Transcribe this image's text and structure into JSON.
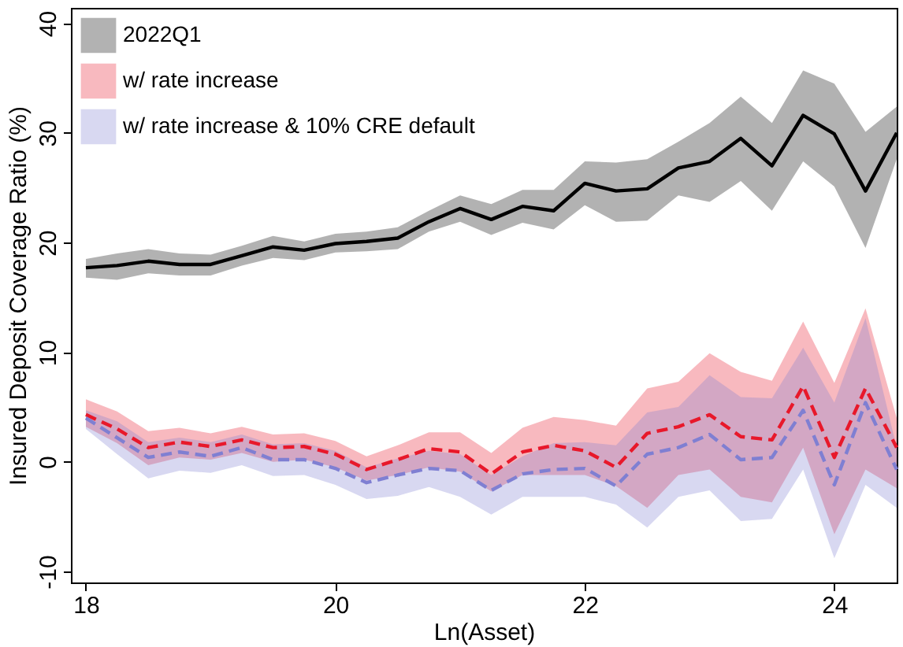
{
  "chart_data": {
    "type": "line",
    "xlabel": "Ln(Asset)",
    "ylabel": "Insured Deposit Coverage Ratio (%)",
    "x": [
      18,
      18.25,
      18.5,
      18.75,
      19,
      19.25,
      19.5,
      19.75,
      20,
      20.25,
      20.5,
      20.75,
      21,
      21.25,
      21.5,
      21.75,
      22,
      22.25,
      22.5,
      22.75,
      23,
      23.25,
      23.5,
      23.75,
      24,
      24.25,
      24.5
    ],
    "series": [
      {
        "name": "2022Q1",
        "color": "#000000",
        "line_style": "solid",
        "values": [
          17.7,
          17.9,
          18.3,
          18.0,
          18.0,
          18.8,
          19.6,
          19.3,
          19.9,
          20.1,
          20.4,
          21.9,
          23.1,
          22.1,
          23.3,
          22.9,
          25.4,
          24.7,
          24.9,
          26.8,
          27.4,
          29.5,
          27.0,
          31.6,
          29.9,
          24.7,
          30.0
        ],
        "lower": [
          16.8,
          16.6,
          17.2,
          17.0,
          17.0,
          17.9,
          18.6,
          18.4,
          19.1,
          19.2,
          19.4,
          21.0,
          21.9,
          20.7,
          21.8,
          21.2,
          23.4,
          21.9,
          22.0,
          24.3,
          23.7,
          25.6,
          22.9,
          27.4,
          25.1,
          19.5,
          27.6
        ],
        "upper": [
          18.5,
          19.0,
          19.4,
          19.0,
          18.9,
          19.7,
          20.6,
          20.1,
          20.8,
          21.0,
          21.4,
          22.9,
          24.3,
          23.5,
          24.8,
          24.8,
          27.4,
          27.3,
          27.6,
          29.2,
          30.9,
          33.3,
          30.9,
          35.7,
          34.5,
          30.1,
          32.4
        ]
      },
      {
        "name": "w/ rate increase",
        "color": "#e8182a",
        "line_style": "dashed",
        "values": [
          4.3,
          3.0,
          1.3,
          1.8,
          1.4,
          2.0,
          1.3,
          1.4,
          0.7,
          -0.7,
          0.2,
          1.2,
          0.9,
          -1.1,
          0.9,
          1.5,
          1.0,
          -0.5,
          2.6,
          3.2,
          4.3,
          2.3,
          2.0,
          6.9,
          0.4,
          6.7,
          1.3
        ],
        "lower": [
          3.2,
          1.7,
          -0.3,
          0.4,
          0.2,
          0.8,
          0.0,
          0.2,
          -0.5,
          -1.7,
          -1.2,
          -0.5,
          -0.9,
          -2.7,
          -1.2,
          -1.2,
          -1.2,
          -2.2,
          -4.2,
          -1.2,
          -0.7,
          -3.2,
          -3.7,
          1.3,
          -6.6,
          -0.7,
          -2.4
        ],
        "upper": [
          5.7,
          4.6,
          2.8,
          3.1,
          2.6,
          3.2,
          2.5,
          2.6,
          1.9,
          0.5,
          1.5,
          2.7,
          2.7,
          0.8,
          3.1,
          4.1,
          3.8,
          3.3,
          6.7,
          7.3,
          9.9,
          8.2,
          7.4,
          12.8,
          7.2,
          14.0,
          4.0
        ]
      },
      {
        "name": "w/ rate increase & 10% CRE default",
        "color": "#7f7fd2",
        "line_style": "dashed",
        "values": [
          4.0,
          2.2,
          0.4,
          0.9,
          0.5,
          1.3,
          0.2,
          0.2,
          -0.6,
          -1.9,
          -1.2,
          -0.6,
          -0.8,
          -2.6,
          -1.1,
          -0.7,
          -0.6,
          -2.2,
          0.7,
          1.3,
          2.5,
          0.2,
          0.4,
          4.7,
          -2.1,
          5.4,
          -0.7
        ],
        "lower": [
          3.0,
          0.7,
          -1.5,
          -0.8,
          -1.0,
          -0.3,
          -1.3,
          -1.2,
          -2.1,
          -3.4,
          -3.1,
          -2.3,
          -3.2,
          -4.8,
          -3.2,
          -3.2,
          -3.2,
          -3.9,
          -6.0,
          -3.2,
          -2.6,
          -5.4,
          -5.2,
          -0.7,
          -8.8,
          -2.1,
          -4.2
        ],
        "upper": [
          4.7,
          3.7,
          1.8,
          2.2,
          1.8,
          2.5,
          1.6,
          1.7,
          1.0,
          -0.5,
          0.3,
          1.0,
          0.7,
          -1.2,
          0.5,
          1.7,
          1.8,
          1.5,
          4.5,
          5.0,
          7.9,
          5.9,
          5.8,
          10.4,
          5.4,
          13.1,
          1.3
        ]
      }
    ],
    "xlim": [
      17.88,
      24.5
    ],
    "xticks": [
      18,
      20,
      22,
      24
    ],
    "ylim": [
      -11,
      41.4
    ],
    "yticks": [
      -10,
      0,
      10,
      20,
      30,
      40
    ],
    "grid": false,
    "legend": "top left",
    "marker": "none"
  }
}
